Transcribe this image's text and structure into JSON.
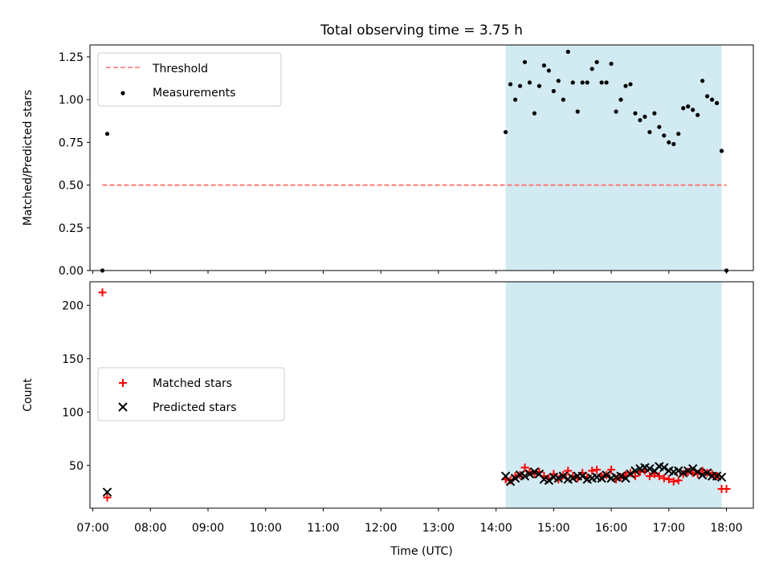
{
  "title": "Total observing time = 3.75 h",
  "colors": {
    "threshold": "#ff7070",
    "measurements": "#000000",
    "matched": "#ff0000",
    "predicted": "#000000",
    "observing_span": "#add8e6"
  },
  "chart_data": [
    {
      "type": "scatter",
      "ylabel": "Matched/Predicted stars",
      "ylim": [
        0,
        1.32
      ],
      "yticks": [
        "0.00",
        "0.25",
        "0.50",
        "0.75",
        "1.00",
        "1.25"
      ],
      "shaded_span": [
        "14:10",
        "17:55"
      ],
      "legend": {
        "placement": "upper-left",
        "entries": [
          "Threshold",
          "Measurements"
        ]
      },
      "series": [
        {
          "name": "Threshold",
          "style": "dashed-line",
          "points": [
            [
              "07:10",
              0.5
            ],
            [
              "18:00",
              0.5
            ]
          ]
        },
        {
          "name": "Measurements",
          "style": "dot",
          "points": [
            [
              "07:10",
              0.0
            ],
            [
              "07:15",
              0.8
            ],
            [
              "14:10",
              0.81
            ],
            [
              "14:15",
              1.09
            ],
            [
              "14:20",
              1.0
            ],
            [
              "14:25",
              1.08
            ],
            [
              "14:30",
              1.22
            ],
            [
              "14:35",
              1.1
            ],
            [
              "14:40",
              0.92
            ],
            [
              "14:45",
              1.08
            ],
            [
              "14:50",
              1.2
            ],
            [
              "14:55",
              1.17
            ],
            [
              "15:00",
              1.05
            ],
            [
              "15:05",
              1.11
            ],
            [
              "15:10",
              1.0
            ],
            [
              "15:15",
              1.28
            ],
            [
              "15:20",
              1.1
            ],
            [
              "15:25",
              0.93
            ],
            [
              "15:30",
              1.1
            ],
            [
              "15:35",
              1.1
            ],
            [
              "15:40",
              1.18
            ],
            [
              "15:45",
              1.22
            ],
            [
              "15:50",
              1.1
            ],
            [
              "15:55",
              1.1
            ],
            [
              "16:00",
              1.21
            ],
            [
              "16:05",
              0.93
            ],
            [
              "16:10",
              1.0
            ],
            [
              "16:15",
              1.08
            ],
            [
              "16:20",
              1.09
            ],
            [
              "16:25",
              0.92
            ],
            [
              "16:30",
              0.88
            ],
            [
              "16:35",
              0.9
            ],
            [
              "16:40",
              0.81
            ],
            [
              "16:45",
              0.92
            ],
            [
              "16:50",
              0.84
            ],
            [
              "16:55",
              0.79
            ],
            [
              "17:00",
              0.75
            ],
            [
              "17:05",
              0.74
            ],
            [
              "17:10",
              0.8
            ],
            [
              "17:15",
              0.95
            ],
            [
              "17:20",
              0.96
            ],
            [
              "17:25",
              0.94
            ],
            [
              "17:30",
              0.91
            ],
            [
              "17:35",
              1.11
            ],
            [
              "17:40",
              1.02
            ],
            [
              "17:45",
              1.0
            ],
            [
              "17:50",
              0.98
            ],
            [
              "17:55",
              0.7
            ],
            [
              "18:00",
              0.0
            ]
          ]
        }
      ]
    },
    {
      "type": "scatter",
      "xlabel": "Time (UTC)",
      "ylabel": "Count",
      "ylim": [
        10,
        222
      ],
      "yticks": [
        "50",
        "100",
        "150",
        "200"
      ],
      "xlim": [
        "06:57",
        "18:28"
      ],
      "xticks": [
        "07:00",
        "08:00",
        "09:00",
        "10:00",
        "11:00",
        "12:00",
        "13:00",
        "14:00",
        "15:00",
        "16:00",
        "17:00",
        "18:00"
      ],
      "shaded_span": [
        "14:10",
        "17:55"
      ],
      "legend": {
        "placement": "center-left",
        "entries": [
          "Matched stars",
          "Predicted stars"
        ]
      },
      "series": [
        {
          "name": "Matched stars",
          "marker": "plus",
          "points": [
            [
              "07:10",
              212
            ],
            [
              "07:15",
              20
            ],
            [
              "14:10",
              37
            ],
            [
              "14:15",
              36
            ],
            [
              "14:20",
              40
            ],
            [
              "14:25",
              41
            ],
            [
              "14:30",
              48
            ],
            [
              "14:35",
              44
            ],
            [
              "14:40",
              42
            ],
            [
              "14:45",
              44
            ],
            [
              "14:50",
              40
            ],
            [
              "14:55",
              38
            ],
            [
              "15:00",
              42
            ],
            [
              "15:05",
              37
            ],
            [
              "15:10",
              41
            ],
            [
              "15:15",
              45
            ],
            [
              "15:20",
              40
            ],
            [
              "15:25",
              38
            ],
            [
              "15:30",
              43
            ],
            [
              "15:35",
              39
            ],
            [
              "15:40",
              45
            ],
            [
              "15:45",
              46
            ],
            [
              "15:50",
              40
            ],
            [
              "15:55",
              41
            ],
            [
              "16:00",
              46
            ],
            [
              "16:05",
              37
            ],
            [
              "16:10",
              39
            ],
            [
              "16:15",
              41
            ],
            [
              "16:20",
              43
            ],
            [
              "16:25",
              40
            ],
            [
              "16:30",
              44
            ],
            [
              "16:35",
              45
            ],
            [
              "16:40",
              40
            ],
            [
              "16:45",
              42
            ],
            [
              "16:50",
              40
            ],
            [
              "16:55",
              38
            ],
            [
              "17:00",
              37
            ],
            [
              "17:05",
              35
            ],
            [
              "17:10",
              36
            ],
            [
              "17:15",
              42
            ],
            [
              "17:20",
              44
            ],
            [
              "17:25",
              43
            ],
            [
              "17:30",
              42
            ],
            [
              "17:35",
              45
            ],
            [
              "17:40",
              43
            ],
            [
              "17:45",
              42
            ],
            [
              "17:50",
              40
            ],
            [
              "17:55",
              28
            ],
            [
              "18:00",
              28
            ]
          ]
        },
        {
          "name": "Predicted stars",
          "marker": "x",
          "points": [
            [
              "07:15",
              25
            ],
            [
              "14:10",
              40
            ],
            [
              "14:15",
              35
            ],
            [
              "14:20",
              38
            ],
            [
              "14:25",
              41
            ],
            [
              "14:30",
              40
            ],
            [
              "14:35",
              42
            ],
            [
              "14:40",
              44
            ],
            [
              "14:45",
              42
            ],
            [
              "14:50",
              37
            ],
            [
              "14:55",
              36
            ],
            [
              "15:00",
              39
            ],
            [
              "15:05",
              38
            ],
            [
              "15:10",
              40
            ],
            [
              "15:15",
              37
            ],
            [
              "15:20",
              38
            ],
            [
              "15:25",
              40
            ],
            [
              "15:30",
              40
            ],
            [
              "15:35",
              37
            ],
            [
              "15:40",
              38
            ],
            [
              "15:45",
              39
            ],
            [
              "15:50",
              38
            ],
            [
              "15:55",
              41
            ],
            [
              "16:00",
              38
            ],
            [
              "16:05",
              39
            ],
            [
              "16:10",
              40
            ],
            [
              "16:15",
              38
            ],
            [
              "16:20",
              42
            ],
            [
              "16:25",
              45
            ],
            [
              "16:30",
              47
            ],
            [
              "16:35",
              48
            ],
            [
              "16:40",
              47
            ],
            [
              "16:45",
              45
            ],
            [
              "16:50",
              49
            ],
            [
              "16:55",
              48
            ],
            [
              "17:00",
              45
            ],
            [
              "17:05",
              44
            ],
            [
              "17:10",
              45
            ],
            [
              "17:15",
              43
            ],
            [
              "17:20",
              45
            ],
            [
              "17:25",
              47
            ],
            [
              "17:30",
              44
            ],
            [
              "17:35",
              41
            ],
            [
              "17:40",
              43
            ],
            [
              "17:45",
              40
            ],
            [
              "17:50",
              40
            ],
            [
              "17:55",
              39
            ]
          ]
        }
      ]
    }
  ]
}
